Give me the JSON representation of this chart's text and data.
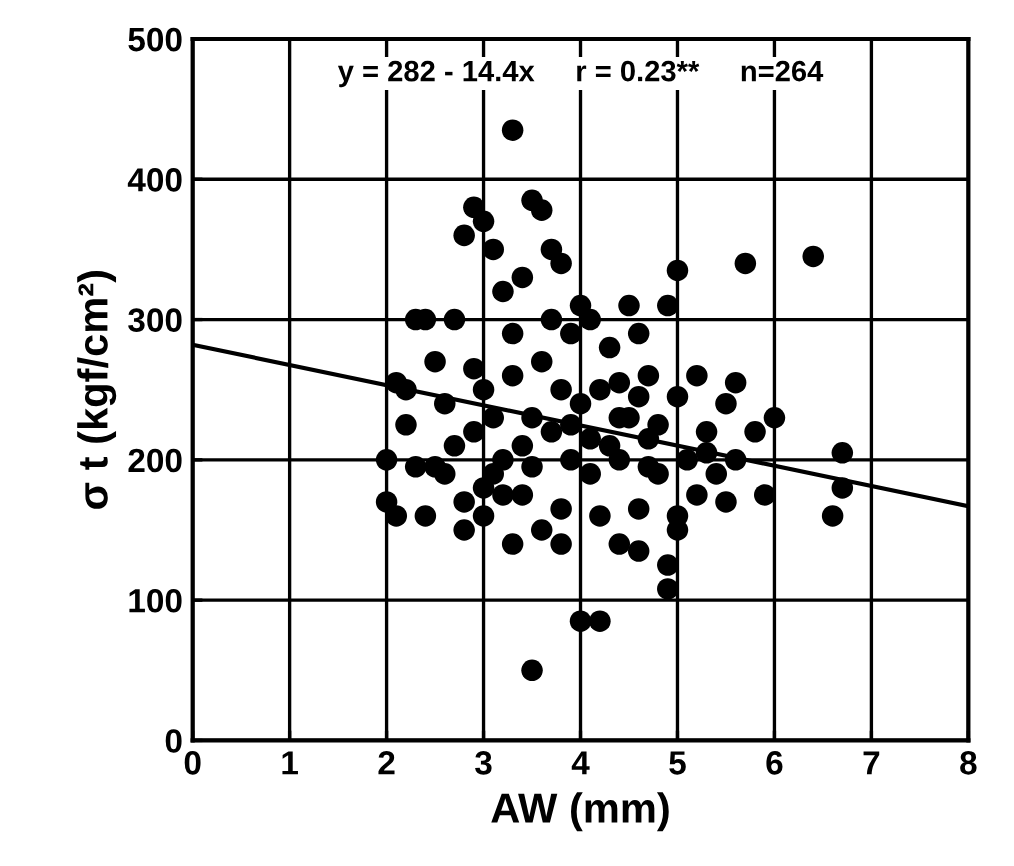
{
  "chart_data": {
    "type": "scatter",
    "xlabel": "AW (mm)",
    "ylabel": "σ t (kgf/cm²)",
    "xlim": [
      0,
      8
    ],
    "ylim": [
      0,
      500
    ],
    "xticks": [
      0,
      1,
      2,
      3,
      4,
      5,
      6,
      7,
      8
    ],
    "yticks": [
      0,
      100,
      200,
      300,
      400,
      500
    ],
    "grid": true,
    "annotations": [
      "y = 282 - 14.4x     r = 0.23**     n=264"
    ],
    "series": [
      {
        "color": "#000000",
        "marker": "circle",
        "x": [
          2.0,
          2.0,
          2.1,
          2.2,
          2.3,
          2.2,
          2.4,
          2.5,
          2.6,
          2.5,
          2.4,
          2.7,
          2.8,
          2.9,
          3.0,
          3.1,
          3.3,
          3.5,
          3.6,
          3.2,
          3.4,
          3.7,
          3.8,
          3.9,
          4.0,
          4.1,
          4.3,
          4.5,
          4.6,
          4.7,
          4.9,
          5.0,
          5.7,
          6.4,
          6.7,
          6.6,
          6.7,
          5.9,
          5.5,
          5.0,
          4.9,
          4.9,
          4.2,
          4.0,
          3.5,
          3.3,
          3.6,
          3.8,
          4.4,
          4.6,
          2.8,
          3.0,
          3.2,
          3.4,
          3.5,
          3.7,
          3.9,
          4.1,
          4.3,
          4.5,
          4.7,
          4.8,
          5.1,
          5.3,
          5.5,
          5.2,
          5.6,
          5.8,
          5.4,
          5.2,
          5.0,
          4.6,
          4.2,
          3.8,
          3.4,
          3.1,
          3.3,
          3.6,
          3.8,
          4.0,
          4.2,
          4.4,
          4.6,
          4.8,
          5.0,
          3.0,
          2.9,
          2.7,
          2.6,
          3.1,
          3.5,
          3.9,
          4.1,
          4.4,
          4.7,
          5.3,
          5.6,
          2.8,
          3.0,
          3.2,
          2.3,
          2.1,
          3.7,
          4.4,
          3.3,
          2.9,
          6.0
        ],
        "values": [
          200,
          170,
          160,
          250,
          300,
          225,
          300,
          270,
          240,
          195,
          160,
          300,
          360,
          380,
          370,
          350,
          435,
          385,
          378,
          320,
          330,
          350,
          340,
          290,
          310,
          300,
          280,
          310,
          290,
          260,
          310,
          335,
          340,
          345,
          205,
          160,
          180,
          175,
          170,
          150,
          125,
          108,
          85,
          85,
          50,
          140,
          150,
          140,
          140,
          135,
          170,
          180,
          200,
          210,
          230,
          220,
          200,
          190,
          210,
          230,
          215,
          190,
          200,
          220,
          240,
          260,
          255,
          220,
          190,
          175,
          160,
          165,
          160,
          165,
          175,
          230,
          260,
          270,
          250,
          240,
          250,
          255,
          245,
          225,
          245,
          250,
          220,
          210,
          190,
          190,
          195,
          225,
          215,
          200,
          195,
          205,
          200,
          150,
          160,
          175,
          195,
          255,
          300,
          230,
          290,
          265,
          230
        ]
      },
      {
        "type": "line",
        "color": "#000000",
        "marker": "none",
        "x": [
          0,
          8
        ],
        "values": [
          282,
          167
        ]
      }
    ]
  }
}
